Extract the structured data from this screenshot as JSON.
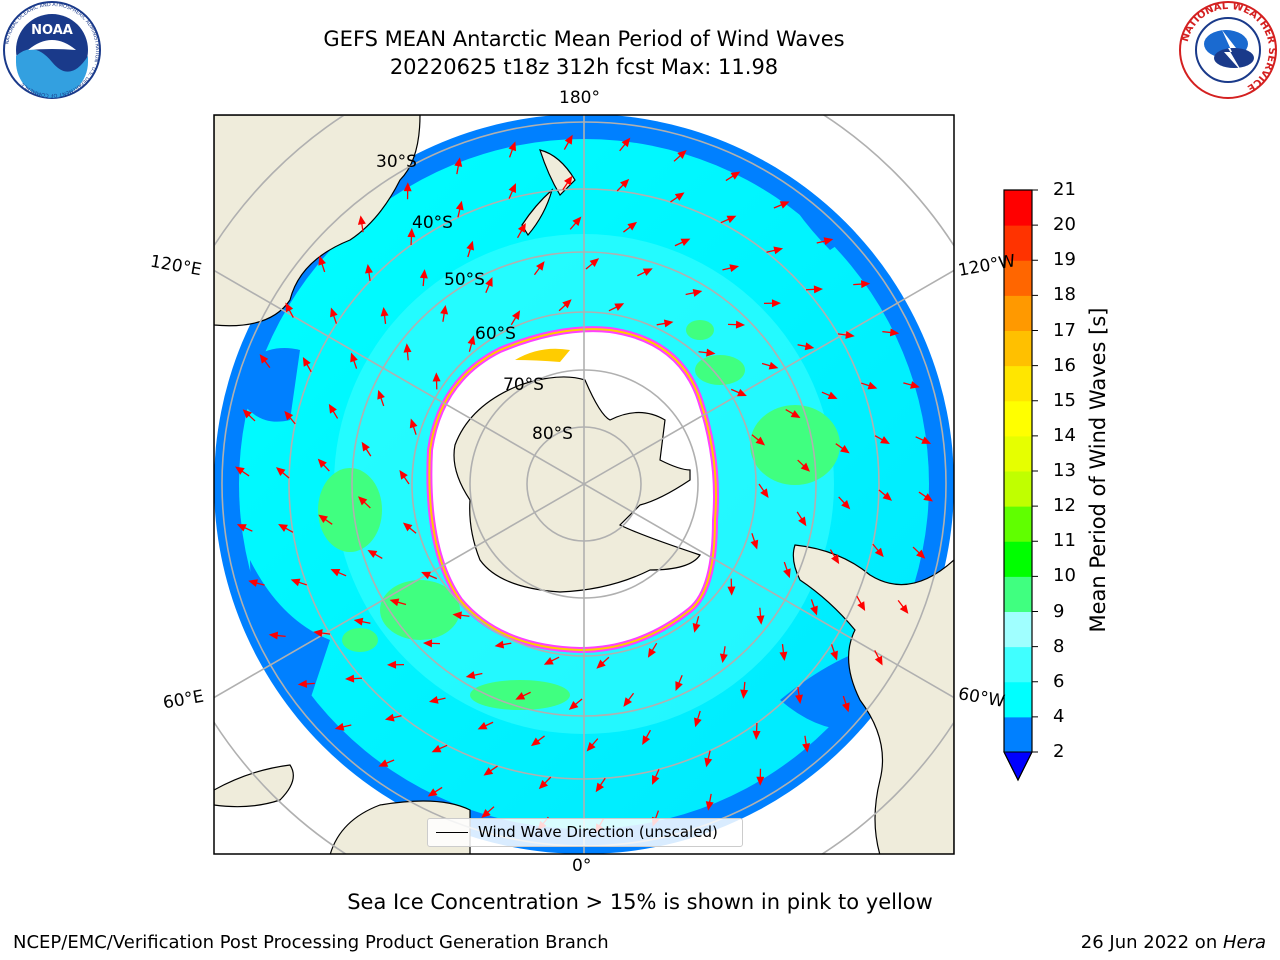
{
  "header": {
    "title_line1": "GEFS MEAN Antarctic Mean Period of Wind Waves",
    "title_line2": "20220625 t18z 312h fcst   Max: 11.98"
  },
  "logos": {
    "left": "noaa-logo",
    "left_text": "NOAA",
    "left_ring": "NATIONAL OCEANIC AND ATMOSPHERIC ADMINISTRATION · U.S. DEPARTMENT OF COMMERCE",
    "right": "nws-logo",
    "right_ring": "NATIONAL WEATHER SERVICE"
  },
  "map": {
    "projection": "south polar stereographic",
    "lat_labels": [
      "30°S",
      "40°S",
      "50°S",
      "60°S",
      "70°S",
      "80°S"
    ],
    "lon_labels": {
      "top": "180°",
      "bottom": "0°",
      "upper_left": "120°E",
      "upper_right": "120°W",
      "lower_left": "60°E",
      "lower_right": "60°W"
    },
    "legend_label": "Wind Wave Direction (unscaled)",
    "colors": {
      "land": "#efecdb",
      "ocean_low": "#0080ff",
      "ocean_mid": "#00ffff",
      "ocean_high": "#40ffff",
      "swell_patches": "#40ff80",
      "sea_ice_edge": "#ff40ff",
      "sea_ice_inner": "#ffcc00",
      "arrow": "#ff0000",
      "grid": "#b0b0b0"
    }
  },
  "colorbar": {
    "title": "Mean Period of Wind Waves [s]",
    "ticks": [
      2,
      4,
      6,
      8,
      9,
      10,
      11,
      12,
      13,
      14,
      15,
      16,
      17,
      18,
      19,
      20,
      21
    ],
    "colors": [
      "#0080ff",
      "#00ffff",
      "#40ffff",
      "#a0ffff",
      "#40ff80",
      "#00ff00",
      "#60ff00",
      "#c0ff00",
      "#e6ff00",
      "#ffff00",
      "#ffe600",
      "#ffc000",
      "#ff9900",
      "#ff6600",
      "#ff3300",
      "#ff0000"
    ],
    "under_color": "#0000ff"
  },
  "caption": "Sea Ice Concentration > 15% is shown in pink to yellow",
  "footer": {
    "left": "NCEP/EMC/Verification Post Processing Product Generation Branch",
    "right_prefix": "26 Jun 2022 on ",
    "right_host": "Hera"
  }
}
